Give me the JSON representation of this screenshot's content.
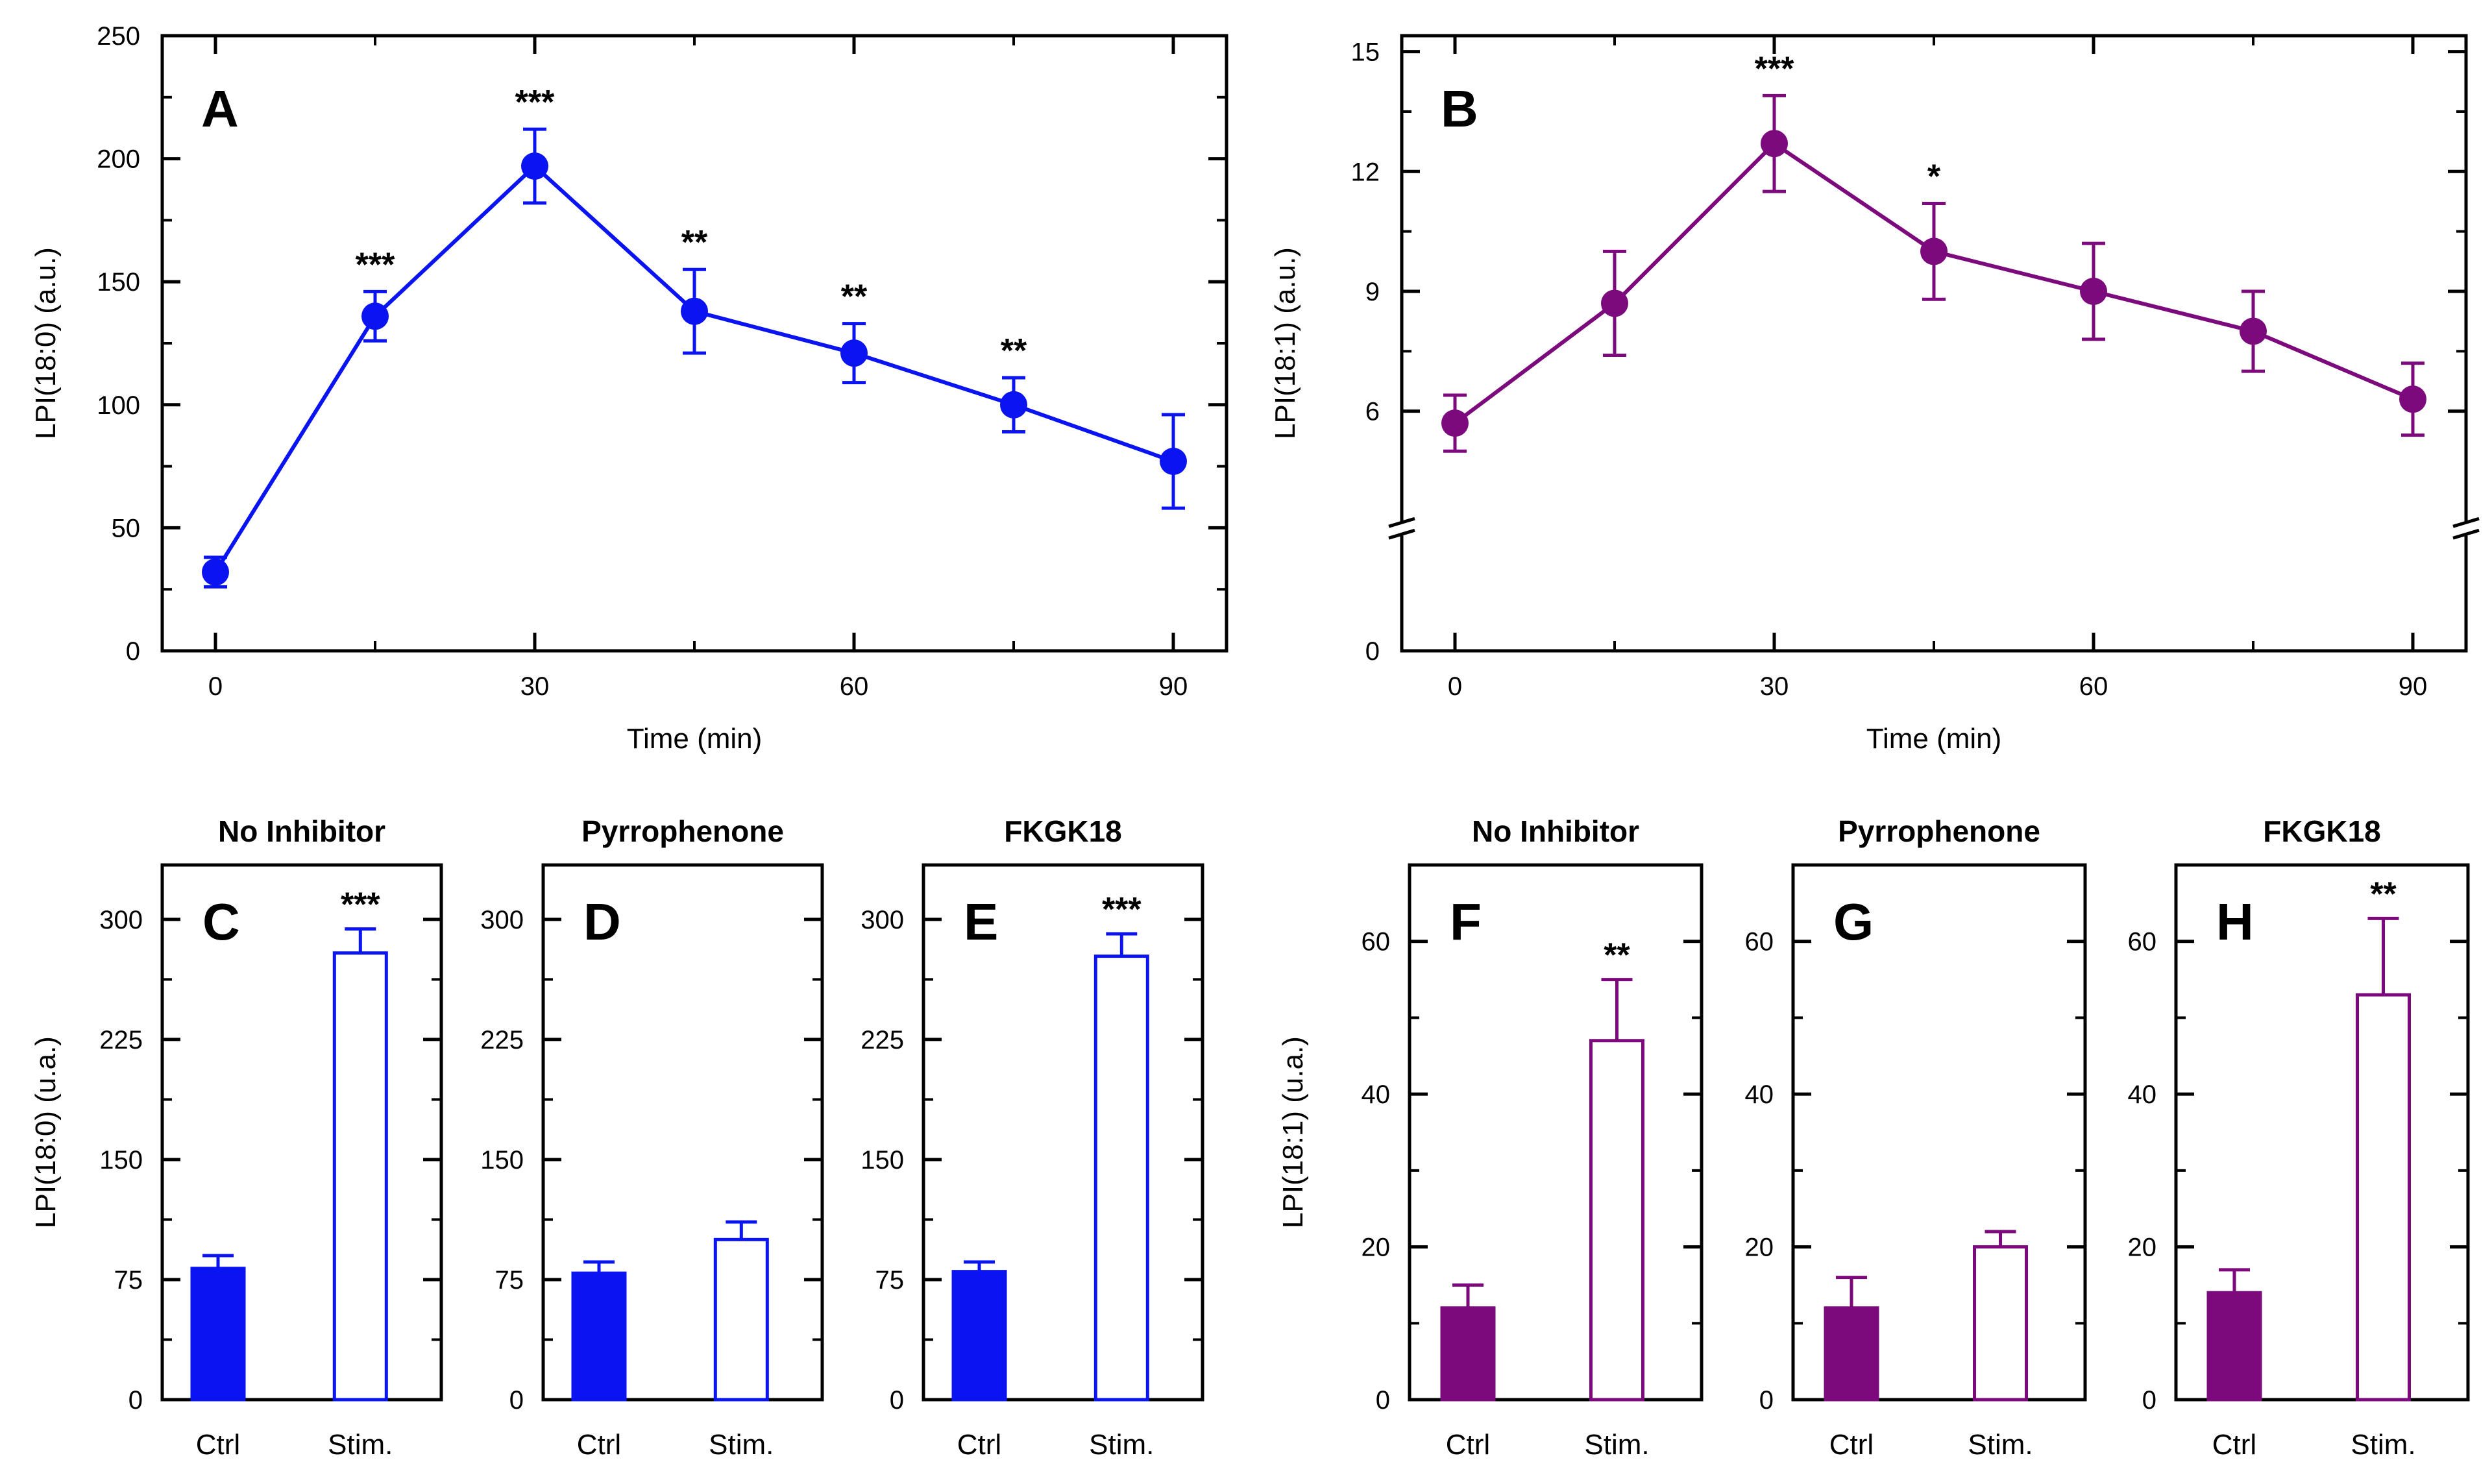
{
  "colors": {
    "blue": "#0a14f0",
    "purple": "#7d0a7d",
    "axis": "#000000"
  },
  "chart_data": [
    {
      "id": "A",
      "type": "line",
      "color": "blue",
      "xlabel": "Time (min)",
      "ylabel": "LPI(18:0) (a.u.)",
      "xlim": [
        -5,
        95
      ],
      "ylim": [
        0,
        250
      ],
      "xticks": [
        0,
        30,
        60,
        90
      ],
      "yticks": [
        0,
        50,
        100,
        150,
        200,
        250
      ],
      "break": false,
      "series": [
        {
          "name": "LPI(18:0)",
          "x": [
            0,
            15,
            30,
            45,
            60,
            75,
            90
          ],
          "y": [
            32,
            136,
            197,
            138,
            121,
            100,
            77
          ],
          "err": [
            6,
            10,
            15,
            17,
            12,
            11,
            19
          ],
          "sig": [
            "",
            "***",
            "***",
            "**",
            "**",
            "**",
            ""
          ]
        }
      ]
    },
    {
      "id": "B",
      "type": "line",
      "color": "purple",
      "xlabel": "Time (min)",
      "ylabel": "LPI(18:1) (a.u.)",
      "xlim": [
        -5,
        95
      ],
      "ylim": [
        0,
        15.4
      ],
      "xticks": [
        0,
        30,
        60,
        90
      ],
      "yticks": [
        0,
        6,
        9,
        12,
        15
      ],
      "break": true,
      "series": [
        {
          "name": "LPI(18:1)",
          "x": [
            0,
            15,
            30,
            45,
            60,
            75,
            90
          ],
          "y": [
            5.7,
            8.7,
            12.7,
            10.0,
            9.0,
            8.0,
            6.3
          ],
          "err": [
            0.7,
            1.3,
            1.2,
            1.2,
            1.2,
            1.0,
            0.9
          ],
          "sig": [
            "",
            "",
            "***",
            "*",
            "",
            "",
            ""
          ]
        }
      ]
    },
    {
      "id": "C",
      "type": "bar",
      "title": "No Inhibitor",
      "color": "blue",
      "ylabel": "LPI(18:0) (u.a.)",
      "categories": [
        "Ctrl",
        "Stim."
      ],
      "values": [
        82,
        279
      ],
      "err": [
        8,
        15
      ],
      "sig": [
        "",
        "***"
      ],
      "ylim": [
        0,
        334
      ],
      "yticks": [
        0,
        75,
        150,
        225,
        300
      ]
    },
    {
      "id": "D",
      "type": "bar",
      "title": "Pyrrophenone",
      "color": "blue",
      "ylabel": "",
      "categories": [
        "Ctrl",
        "Stim."
      ],
      "values": [
        79,
        100
      ],
      "err": [
        7,
        11
      ],
      "sig": [
        "",
        ""
      ],
      "ylim": [
        0,
        334
      ],
      "yticks": [
        0,
        75,
        150,
        225,
        300
      ]
    },
    {
      "id": "E",
      "type": "bar",
      "title": "FKGK18",
      "color": "blue",
      "ylabel": "",
      "categories": [
        "Ctrl",
        "Stim."
      ],
      "values": [
        80,
        277
      ],
      "err": [
        6,
        14
      ],
      "sig": [
        "",
        "***"
      ],
      "ylim": [
        0,
        334
      ],
      "yticks": [
        0,
        75,
        150,
        225,
        300
      ]
    },
    {
      "id": "F",
      "type": "bar",
      "title": "No Inhibitor",
      "color": "purple",
      "ylabel": "LPI(18:1) (u.a.)",
      "categories": [
        "Ctrl",
        "Stim."
      ],
      "values": [
        12,
        47
      ],
      "err": [
        3,
        8
      ],
      "sig": [
        "",
        "**"
      ],
      "ylim": [
        0,
        70
      ],
      "yticks": [
        0,
        20,
        40,
        60
      ]
    },
    {
      "id": "G",
      "type": "bar",
      "title": "Pyrrophenone",
      "color": "purple",
      "ylabel": "",
      "categories": [
        "Ctrl",
        "Stim."
      ],
      "values": [
        12,
        20
      ],
      "err": [
        4,
        2
      ],
      "sig": [
        "",
        ""
      ],
      "ylim": [
        0,
        70
      ],
      "yticks": [
        0,
        20,
        40,
        60
      ]
    },
    {
      "id": "H",
      "type": "bar",
      "title": "FKGK18",
      "color": "purple",
      "ylabel": "",
      "categories": [
        "Ctrl",
        "Stim."
      ],
      "values": [
        14,
        53
      ],
      "err": [
        3,
        10
      ],
      "sig": [
        "",
        "**"
      ],
      "ylim": [
        0,
        70
      ],
      "yticks": [
        0,
        20,
        40,
        60
      ]
    }
  ]
}
